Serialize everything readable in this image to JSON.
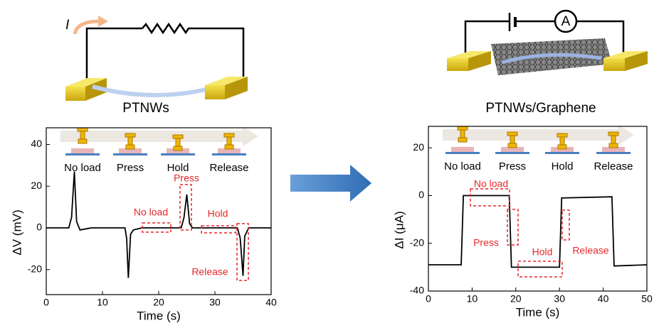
{
  "chart_data": [
    {
      "type": "line",
      "title": "PTNWs",
      "current_label": "I",
      "x_label": "Time (s)",
      "y_label": "ΔV  (mV)",
      "inset_labels": [
        "No load",
        "Press",
        "Hold",
        "Release"
      ],
      "annotations": [
        "Press",
        "No load",
        "Hold",
        "Release"
      ],
      "x": [
        0,
        4,
        4.5,
        5,
        5.4,
        6,
        8,
        14,
        14.3,
        14.6,
        15,
        15.5,
        17,
        24,
        24.5,
        25,
        25.5,
        26,
        34,
        34.5,
        35,
        35.3,
        36,
        40
      ],
      "series": [
        {
          "color": "#000000",
          "values": [
            0,
            0,
            5,
            27,
            3,
            -1,
            0,
            0,
            -5,
            -24,
            -3,
            -1,
            0,
            0,
            5,
            16,
            2,
            0,
            0,
            -5,
            -23,
            -4,
            0,
            0
          ]
        }
      ],
      "xlim": [
        0,
        40
      ],
      "xticks": [
        0,
        10,
        20,
        30,
        40
      ],
      "ylim": [
        -32,
        48
      ],
      "yticks": [
        -20,
        0,
        20,
        40
      ]
    },
    {
      "type": "line",
      "title": "PTNWs/Graphene",
      "meter_label": "A",
      "x_label": "Time (s)",
      "y_label": "ΔI  (μA)",
      "inset_labels": [
        "No load",
        "Press",
        "Hold",
        "Release"
      ],
      "annotations": [
        "No load",
        "Press",
        "Hold",
        "Release"
      ],
      "x": [
        0,
        7.5,
        8,
        18.5,
        19,
        30,
        30.5,
        42,
        42.5,
        50
      ],
      "series": [
        {
          "color": "#000000",
          "values": [
            -29,
            -29,
            0,
            0,
            -30,
            -30,
            -1,
            -0.5,
            -29.5,
            -29
          ]
        }
      ],
      "xlim": [
        0,
        50
      ],
      "xticks": [
        0,
        10,
        20,
        30,
        40,
        50
      ],
      "ylim": [
        -40,
        29
      ],
      "yticks": [
        -40,
        -20,
        0,
        20
      ]
    }
  ]
}
